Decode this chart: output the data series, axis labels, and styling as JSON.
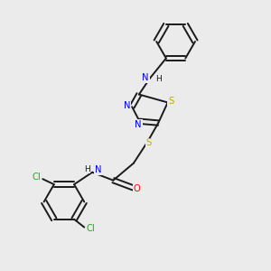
{
  "background_color": "#ebebeb",
  "bond_color": "#1a1a1a",
  "bond_width": 1.4,
  "atom_colors": {
    "N": "#0000ee",
    "S": "#bbaa00",
    "O": "#ee0000",
    "Cl": "#00bb00",
    "C": "#1a1a1a",
    "H": "#1a1a1a"
  },
  "font_size": 7.2,
  "fig_width": 3.0,
  "fig_height": 3.0
}
